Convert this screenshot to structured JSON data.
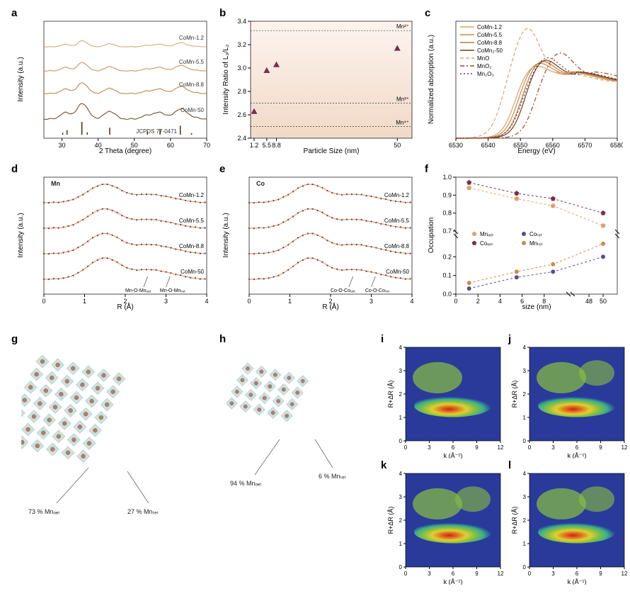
{
  "figure": {
    "background": "#ffffff",
    "panel_label_fontsize": 15,
    "panel_label_fontweight": "bold"
  },
  "a": {
    "type": "line",
    "x_label": "2 Theta (degree)",
    "y_label": "Intensity (a.u.)",
    "xlim": [
      25,
      70
    ],
    "xticks": [
      30,
      40,
      50,
      60,
      70
    ],
    "series_labels": [
      "CoMn-1.2",
      "CoMn-5.5",
      "CoMn-8.8",
      "CoMn-50",
      "JCPDS 77-0471"
    ],
    "colors": [
      "#d9a066",
      "#c98a4d",
      "#b97a3c",
      "#6b3e1a",
      "#4a2a10"
    ],
    "xrd_peaks_x": [
      30.2,
      31.4,
      35.5,
      37.0,
      43.2,
      53.6,
      57.1,
      62.7,
      65.8
    ],
    "xrd_peaks_h": [
      0.15,
      0.35,
      1.0,
      0.18,
      0.55,
      0.25,
      0.45,
      0.7,
      0.12
    ]
  },
  "b": {
    "type": "scatter",
    "x_label": "Particle Size (nm)",
    "y_label": "Intensity Ratio of L₃/L₂",
    "xlim": [
      0,
      55
    ],
    "ylim": [
      2.4,
      3.4
    ],
    "xticks": [
      1.2,
      5.5,
      8.8,
      50
    ],
    "yticks": [
      2.4,
      2.6,
      2.8,
      3.0,
      3.2,
      3.4
    ],
    "points_x": [
      1.2,
      5.5,
      8.8,
      50
    ],
    "points_y": [
      2.63,
      2.98,
      3.03,
      3.17
    ],
    "point_color": "#7a2f4a",
    "ref_lines": [
      {
        "y": 3.32,
        "label": "Mn²⁺"
      },
      {
        "y": 2.7,
        "label": "Mn³⁺"
      },
      {
        "y": 2.5,
        "label": "Mn⁴⁺"
      }
    ],
    "bg_gradient": [
      "#fdf4ef",
      "#f1d9c7"
    ]
  },
  "c": {
    "type": "line",
    "x_label": "Energy (eV)",
    "y_label": "Normalized absorption (a.u.)",
    "xlim": [
      6530,
      6580
    ],
    "xticks": [
      6530,
      6540,
      6550,
      6560,
      6570,
      6580
    ],
    "series": [
      {
        "label": "CoMn-1.2",
        "color": "#d9a066",
        "dash": "none"
      },
      {
        "label": "CoMn-5.5",
        "color": "#c98a4d",
        "dash": "none"
      },
      {
        "label": "CoMn-8.8",
        "color": "#b97a3c",
        "dash": "none"
      },
      {
        "label": "CoMn₂-50",
        "color": "#6b3e1a",
        "dash": "none"
      },
      {
        "label": "MnO",
        "color": "#e0a070",
        "dash": "dash"
      },
      {
        "label": "MnO₂",
        "color": "#9a4b28",
        "dash": "dashdot"
      },
      {
        "label": "Mn₂O₃",
        "color": "#7a2f4a",
        "dash": "dot"
      }
    ]
  },
  "d": {
    "type": "line",
    "title": "Mn",
    "x_label": "R (Å)",
    "y_label": "Intensity (a.u.)",
    "xlim": [
      0,
      4
    ],
    "xticks": [
      0,
      1,
      2,
      3,
      4
    ],
    "series_labels": [
      "CoMn-1.2",
      "CoMn-5.5",
      "CoMn-8.8",
      "CoMn-50"
    ],
    "line_color": "#d9a066",
    "fit_color": "#7a2f4a",
    "anno1": "Mn-O-Mnₒₑₜ",
    "anno2": "Mn-O-Mnₜₑₜ"
  },
  "e": {
    "type": "line",
    "title": "Co",
    "x_label": "R (Å)",
    "y_label": "Intensity (a.u.)",
    "xlim": [
      0,
      4
    ],
    "xticks": [
      0,
      1,
      2,
      3,
      4
    ],
    "series_labels": [
      "CoMn-1.2",
      "CoMn-5.5",
      "CoMn-8.8",
      "CoMn-50"
    ],
    "line_color": "#d9a066",
    "fit_color": "#7a2f4a",
    "anno1": "Co-O-Coₒₑₜ",
    "anno2": "Co-O-Coₜₑₜ"
  },
  "f": {
    "type": "scatter-line",
    "x_label": "size (nm)",
    "y_label": "Occupation",
    "xlim_left": [
      0,
      10
    ],
    "xlim_right": [
      46,
      52
    ],
    "ylim_bottom": [
      0.0,
      0.3
    ],
    "ylim_top": [
      0.7,
      1.0
    ],
    "xticks_left": [
      0,
      2,
      4,
      6,
      8
    ],
    "xticks_right": [
      48,
      50
    ],
    "yticks_bottom": [
      0.0,
      0.1,
      0.2
    ],
    "yticks_top": [
      0.7,
      0.8,
      0.9,
      1.0
    ],
    "legend": [
      {
        "label": "Mnₒₑₜ",
        "color": "#e0a070",
        "marker": "pent"
      },
      {
        "label": "Coₜₑₜ",
        "color": "#5b4a8a",
        "marker": "circ"
      },
      {
        "label": "Coₒₑₜ",
        "color": "#7a2f4a",
        "marker": "pent"
      },
      {
        "label": "Mnₜₑₜ",
        "color": "#c98a4d",
        "marker": "circ"
      }
    ],
    "sizes": [
      1.2,
      5.5,
      8.8,
      50
    ],
    "MnOct": [
      0.94,
      0.88,
      0.84,
      0.73
    ],
    "CoOct": [
      0.97,
      0.91,
      0.88,
      0.8
    ],
    "MnTet": [
      0.06,
      0.12,
      0.16,
      0.27
    ],
    "CoTet": [
      0.03,
      0.09,
      0.12,
      0.2
    ]
  },
  "g": {
    "type": "infographic",
    "label_oct": "73 % Mnₒₑₜ",
    "label_tet": "27 % Mnₜₑₜ",
    "atom_color": "#b87a6a",
    "poly_color": "#6ab0a8"
  },
  "h": {
    "type": "infographic",
    "label_oct": "94 % Mnₒₑₜ",
    "label_tet": "6 % Mnₜₑₜ",
    "atom_color": "#b87a6a",
    "poly_color": "#6ab0a8"
  },
  "wavelet": {
    "type": "heatmap",
    "x_label": "k (Å⁻¹)",
    "y_label": "R+ΔR (Å)",
    "xlim": [
      0,
      12
    ],
    "ylim": [
      0,
      4
    ],
    "xticks": [
      0,
      3,
      6,
      9,
      12
    ],
    "yticks": [
      0,
      1,
      2,
      3,
      4
    ],
    "colormap": [
      "#2a3a9a",
      "#2a7ab0",
      "#3ab08a",
      "#8ac040",
      "#e0d030",
      "#e07020",
      "#d02020"
    ]
  }
}
